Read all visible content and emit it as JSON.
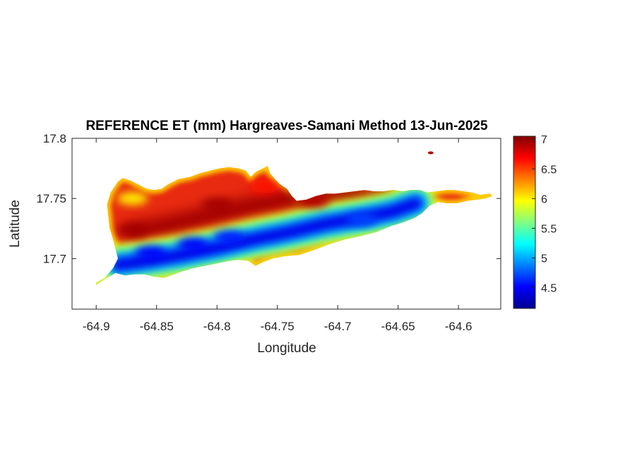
{
  "title": "REFERENCE ET (mm) Hargreaves-Samani Method  13-Jun-2025",
  "xlabel": "Longitude",
  "ylabel": "Latitude",
  "x_ticks": [
    "-64.9",
    "-64.85",
    "-64.8",
    "-64.75",
    "-64.7",
    "-64.65",
    "-64.6"
  ],
  "y_ticks": [
    "17.8",
    "17.75",
    "17.7"
  ],
  "colorbar": {
    "ticks": [
      "7",
      "6.5",
      "6",
      "5.5",
      "5",
      "4.5"
    ],
    "colormap": "jet",
    "range": [
      4.15,
      7.05
    ]
  },
  "chart_data": {
    "type": "heatmap",
    "title": "REFERENCE ET (mm) Hargreaves-Samani Method  13-Jun-2025",
    "xlabel": "Longitude",
    "ylabel": "Latitude",
    "xlim": [
      -64.92,
      -64.565
    ],
    "ylim": [
      17.658,
      17.8
    ],
    "x_tick_values": [
      -64.9,
      -64.85,
      -64.8,
      -64.75,
      -64.7,
      -64.65,
      -64.6
    ],
    "y_tick_values": [
      17.8,
      17.75,
      17.7
    ],
    "colorbar_range": [
      4.15,
      7.05
    ],
    "colorbar_tick_values": [
      7,
      6.5,
      6,
      5.5,
      5,
      4.5
    ],
    "grid": false,
    "island_outline_lonlat": [
      [
        -64.9,
        17.68
      ],
      [
        -64.893,
        17.684
      ],
      [
        -64.886,
        17.692
      ],
      [
        -64.882,
        17.7
      ],
      [
        -64.884,
        17.708
      ],
      [
        -64.886,
        17.716
      ],
      [
        -64.889,
        17.726
      ],
      [
        -64.89,
        17.736
      ],
      [
        -64.891,
        17.745
      ],
      [
        -64.888,
        17.755
      ],
      [
        -64.882,
        17.764
      ],
      [
        -64.878,
        17.767
      ],
      [
        -64.872,
        17.765
      ],
      [
        -64.866,
        17.762
      ],
      [
        -64.858,
        17.758
      ],
      [
        -64.852,
        17.757
      ],
      [
        -64.846,
        17.758
      ],
      [
        -64.84,
        17.762
      ],
      [
        -64.832,
        17.766
      ],
      [
        -64.822,
        17.768
      ],
      [
        -64.814,
        17.771
      ],
      [
        -64.806,
        17.773
      ],
      [
        -64.798,
        17.775
      ],
      [
        -64.79,
        17.776
      ],
      [
        -64.782,
        17.775
      ],
      [
        -64.776,
        17.773
      ],
      [
        -64.772,
        17.768
      ],
      [
        -64.768,
        17.772
      ],
      [
        -64.762,
        17.775
      ],
      [
        -64.758,
        17.777
      ],
      [
        -64.756,
        17.771
      ],
      [
        -64.752,
        17.766
      ],
      [
        -64.748,
        17.762
      ],
      [
        -64.742,
        17.758
      ],
      [
        -64.738,
        17.752
      ],
      [
        -64.734,
        17.748
      ],
      [
        -64.726,
        17.749
      ],
      [
        -64.718,
        17.752
      ],
      [
        -64.71,
        17.754
      ],
      [
        -64.702,
        17.754
      ],
      [
        -64.694,
        17.755
      ],
      [
        -64.686,
        17.756
      ],
      [
        -64.678,
        17.757
      ],
      [
        -64.67,
        17.756
      ],
      [
        -64.662,
        17.756
      ],
      [
        -64.654,
        17.757
      ],
      [
        -64.646,
        17.756
      ],
      [
        -64.64,
        17.757
      ],
      [
        -64.632,
        17.757
      ],
      [
        -64.626,
        17.755
      ],
      [
        -64.618,
        17.756
      ],
      [
        -64.61,
        17.757
      ],
      [
        -64.603,
        17.757
      ],
      [
        -64.596,
        17.756
      ],
      [
        -64.589,
        17.755
      ],
      [
        -64.582,
        17.753
      ],
      [
        -64.574,
        17.754
      ],
      [
        -64.572,
        17.752
      ],
      [
        -64.578,
        17.75
      ],
      [
        -64.585,
        17.749
      ],
      [
        -64.593,
        17.748
      ],
      [
        -64.601,
        17.746
      ],
      [
        -64.609,
        17.746
      ],
      [
        -64.617,
        17.747
      ],
      [
        -64.624,
        17.744
      ],
      [
        -64.63,
        17.738
      ],
      [
        -64.636,
        17.734
      ],
      [
        -64.646,
        17.73
      ],
      [
        -64.656,
        17.727
      ],
      [
        -64.668,
        17.722
      ],
      [
        -64.68,
        17.719
      ],
      [
        -64.694,
        17.716
      ],
      [
        -64.707,
        17.712
      ],
      [
        -64.72,
        17.707
      ],
      [
        -64.732,
        17.703
      ],
      [
        -64.744,
        17.702
      ],
      [
        -64.754,
        17.7
      ],
      [
        -64.762,
        17.697
      ],
      [
        -64.768,
        17.694
      ],
      [
        -64.774,
        17.698
      ],
      [
        -64.782,
        17.699
      ],
      [
        -64.79,
        17.698
      ],
      [
        -64.8,
        17.696
      ],
      [
        -64.81,
        17.694
      ],
      [
        -64.82,
        17.692
      ],
      [
        -64.83,
        17.689
      ],
      [
        -64.838,
        17.686
      ],
      [
        -64.844,
        17.684
      ],
      [
        -64.852,
        17.685
      ],
      [
        -64.86,
        17.687
      ],
      [
        -64.868,
        17.687
      ],
      [
        -64.876,
        17.686
      ],
      [
        -64.884,
        17.688
      ],
      [
        -64.893,
        17.683
      ],
      [
        -64.9,
        17.678
      ]
    ],
    "valley_axis_lonlat": [
      [
        -64.882,
        17.695
      ],
      [
        -64.86,
        17.698
      ],
      [
        -64.83,
        17.703
      ],
      [
        -64.8,
        17.709
      ],
      [
        -64.77,
        17.716
      ],
      [
        -64.74,
        17.722
      ],
      [
        -64.71,
        17.729
      ],
      [
        -64.68,
        17.734
      ],
      [
        -64.655,
        17.739
      ],
      [
        -64.635,
        17.746
      ]
    ],
    "ridge_axis_lonlat": [
      [
        -64.87,
        17.722
      ],
      [
        -64.84,
        17.728
      ],
      [
        -64.81,
        17.735
      ],
      [
        -64.78,
        17.742
      ],
      [
        -64.75,
        17.748
      ],
      [
        -64.72,
        17.752
      ],
      [
        -64.69,
        17.753
      ],
      [
        -64.66,
        17.752
      ]
    ],
    "patches": [
      {
        "lon": -64.87,
        "lat": 17.75,
        "value": 6.0
      },
      {
        "lon": -64.76,
        "lat": 17.76,
        "value": 6.65
      },
      {
        "lon": -64.72,
        "lat": 17.748,
        "value": 6.9
      },
      {
        "lon": -64.8,
        "lat": 17.745,
        "value": 6.95
      },
      {
        "lon": -64.87,
        "lat": 17.724,
        "value": 6.95
      },
      {
        "lon": -64.855,
        "lat": 17.705,
        "value": 4.5
      },
      {
        "lon": -64.82,
        "lat": 17.712,
        "value": 4.5
      },
      {
        "lon": -64.79,
        "lat": 17.718,
        "value": 4.6
      },
      {
        "lon": -64.68,
        "lat": 17.733,
        "value": 4.7
      },
      {
        "lon": -64.9,
        "lat": 17.68,
        "value": 5.8
      },
      {
        "lon": -64.623,
        "lat": 17.788,
        "value": 6.9
      },
      {
        "lon": -64.6,
        "lat": 17.751,
        "value": 6.9
      }
    ]
  }
}
